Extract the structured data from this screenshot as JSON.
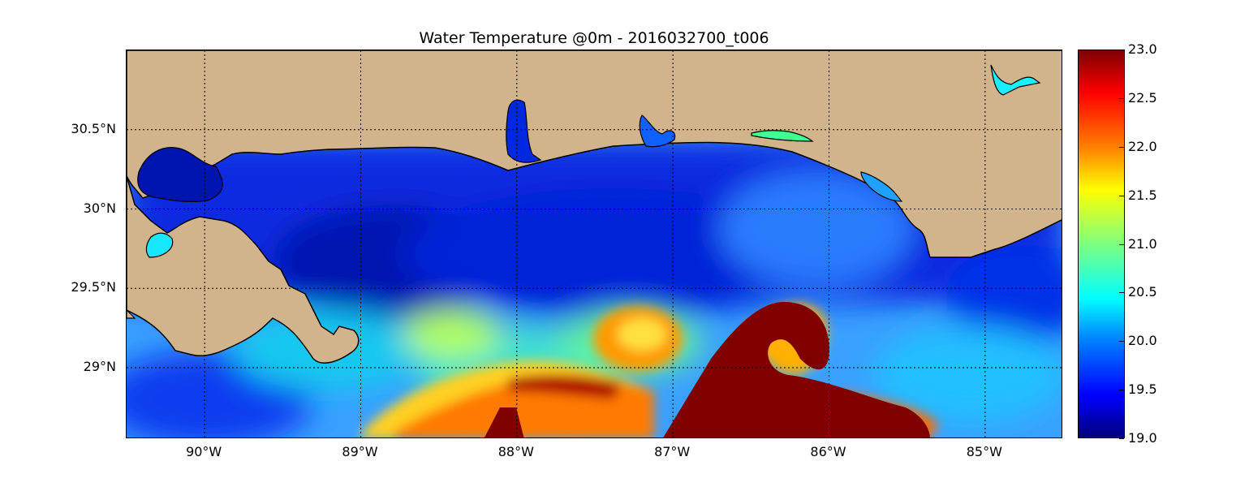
{
  "title": "Water Temperature @0m - 2016032700_t006",
  "map": {
    "lon_range": [
      -90.5,
      -84.5
    ],
    "lat_range": [
      28.55,
      31.0
    ],
    "grid": true,
    "lon_ticks": [
      {
        "value": -90,
        "label": "90°W"
      },
      {
        "value": -89,
        "label": "89°W"
      },
      {
        "value": -88,
        "label": "88°W"
      },
      {
        "value": -87,
        "label": "87°W"
      },
      {
        "value": -86,
        "label": "86°W"
      },
      {
        "value": -85,
        "label": "85°W"
      }
    ],
    "lat_ticks": [
      {
        "value": 30.5,
        "label": "30.5°N"
      },
      {
        "value": 30.0,
        "label": "30°N"
      },
      {
        "value": 29.5,
        "label": "29.5°N"
      },
      {
        "value": 29.0,
        "label": "29°N"
      }
    ],
    "land_color": "#D2B48C",
    "coast_color": "#000000"
  },
  "colorbar": {
    "min": 19.0,
    "max": 23.0,
    "colormap": "jet",
    "ticks": [
      {
        "value": 23.0,
        "label": "23.0"
      },
      {
        "value": 22.5,
        "label": "22.5"
      },
      {
        "value": 22.0,
        "label": "22.0"
      },
      {
        "value": 21.5,
        "label": "21.5"
      },
      {
        "value": 21.0,
        "label": "21.0"
      },
      {
        "value": 20.5,
        "label": "20.5"
      },
      {
        "value": 20.0,
        "label": "20.0"
      },
      {
        "value": 19.5,
        "label": "19.5"
      },
      {
        "value": 19.0,
        "label": "19.0"
      }
    ]
  }
}
